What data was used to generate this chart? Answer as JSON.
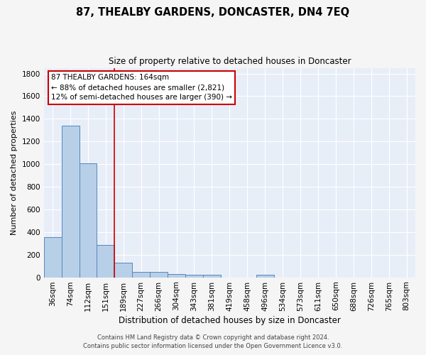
{
  "title": "87, THEALBY GARDENS, DONCASTER, DN4 7EQ",
  "subtitle": "Size of property relative to detached houses in Doncaster",
  "xlabel": "Distribution of detached houses by size in Doncaster",
  "ylabel": "Number of detached properties",
  "categories": [
    "36sqm",
    "74sqm",
    "112sqm",
    "151sqm",
    "189sqm",
    "227sqm",
    "266sqm",
    "304sqm",
    "343sqm",
    "381sqm",
    "419sqm",
    "458sqm",
    "496sqm",
    "534sqm",
    "573sqm",
    "611sqm",
    "650sqm",
    "688sqm",
    "726sqm",
    "765sqm",
    "803sqm"
  ],
  "values": [
    355,
    1340,
    1010,
    285,
    130,
    45,
    45,
    30,
    20,
    20,
    0,
    0,
    20,
    0,
    0,
    0,
    0,
    0,
    0,
    0,
    0
  ],
  "bar_color": "#b8cfe8",
  "bar_edge_color": "#5588bb",
  "background_color": "#e8eef8",
  "grid_color": "#ffffff",
  "property_line_x": 3.5,
  "annotation_text1": "87 THEALBY GARDENS: 164sqm",
  "annotation_text2": "← 88% of detached houses are smaller (2,821)",
  "annotation_text3": "12% of semi-detached houses are larger (390) →",
  "annotation_box_color": "#ffffff",
  "annotation_border_color": "#cc0000",
  "vline_color": "#cc0000",
  "footer1": "Contains HM Land Registry data © Crown copyright and database right 2024.",
  "footer2": "Contains public sector information licensed under the Open Government Licence v3.0.",
  "ylim": [
    0,
    1850
  ],
  "yticks": [
    0,
    200,
    400,
    600,
    800,
    1000,
    1200,
    1400,
    1600,
    1800
  ],
  "title_fontsize": 10.5,
  "subtitle_fontsize": 8.5,
  "xlabel_fontsize": 8.5,
  "ylabel_fontsize": 8,
  "tick_fontsize": 7.5,
  "annotation_fontsize": 7.5,
  "footer_fontsize": 6
}
